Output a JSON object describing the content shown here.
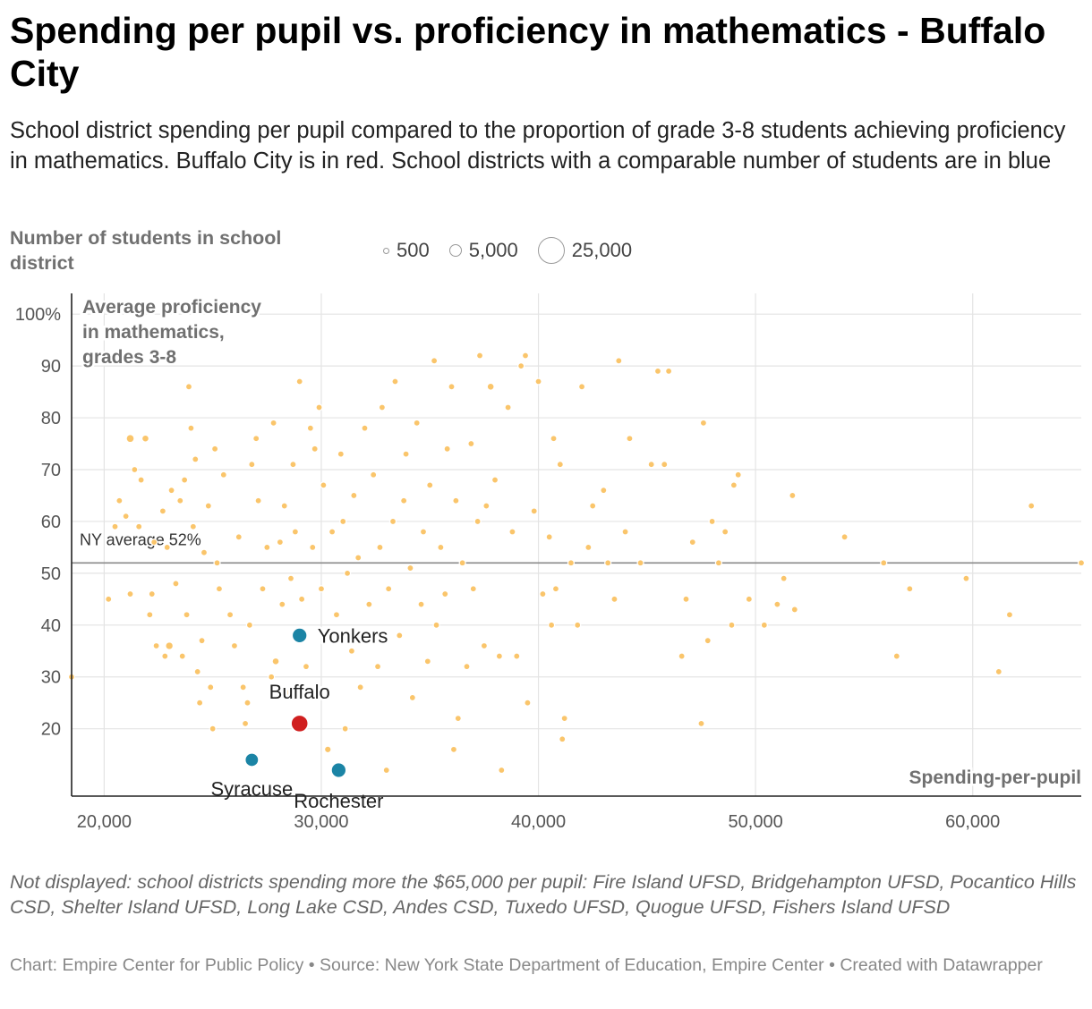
{
  "header": {
    "title": "Spending per pupil vs. proficiency in mathematics - Buffalo City",
    "description": "School district spending per pupil compared to the proportion of grade 3-8 students achieving proficiency in mathematics. Buffalo City is in red. School districts with a comparable number of students are in blue"
  },
  "legend": {
    "title": "Number of students in school district",
    "sizes": [
      {
        "label": "500",
        "students": 500
      },
      {
        "label": "5,000",
        "students": 5000
      },
      {
        "label": "25,000",
        "students": 25000
      }
    ]
  },
  "chart_data": {
    "type": "scatter",
    "title": "Spending per pupil vs. proficiency in mathematics - Buffalo City",
    "xlabel": "Spending-per-pupil",
    "ylabel": "Average proficiency in mathematics, grades 3-8",
    "xlim": [
      18500,
      65000
    ],
    "ylim": [
      7,
      104
    ],
    "x_ticks": [
      {
        "value": 20000,
        "label": "20,000"
      },
      {
        "value": 30000,
        "label": "30,000"
      },
      {
        "value": 40000,
        "label": "40,000"
      },
      {
        "value": 50000,
        "label": "50,000"
      },
      {
        "value": 60000,
        "label": "60,000"
      }
    ],
    "y_ticks": [
      {
        "value": 20,
        "label": "20"
      },
      {
        "value": 30,
        "label": "30"
      },
      {
        "value": 40,
        "label": "40"
      },
      {
        "value": 50,
        "label": "50"
      },
      {
        "value": 60,
        "label": "60"
      },
      {
        "value": 70,
        "label": "70"
      },
      {
        "value": 80,
        "label": "80"
      },
      {
        "value": 90,
        "label": "90"
      },
      {
        "value": 100,
        "label": "100%"
      }
    ],
    "reference_line": {
      "value": 52,
      "label": "NY average 52%"
    },
    "colors": {
      "other": "#fac56b",
      "buffalo": "#d01f1f",
      "comparable": "#1b84a5"
    },
    "highlighted": [
      {
        "name": "Buffalo",
        "x": 29000,
        "y": 21,
        "students": 31000,
        "group": "buffalo"
      },
      {
        "name": "Yonkers",
        "x": 29000,
        "y": 38,
        "students": 24000,
        "group": "comparable"
      },
      {
        "name": "Syracuse",
        "x": 26800,
        "y": 14,
        "students": 20000,
        "group": "comparable"
      },
      {
        "name": "Rochester",
        "x": 30800,
        "y": 12,
        "students": 24000,
        "group": "comparable"
      }
    ],
    "points": [
      [
        18500,
        30,
        1500
      ],
      [
        20200,
        45,
        900
      ],
      [
        20500,
        59,
        2500
      ],
      [
        20700,
        64,
        1200
      ],
      [
        21000,
        61,
        1500
      ],
      [
        21200,
        76,
        6500
      ],
      [
        21200,
        46,
        1000
      ],
      [
        21400,
        70,
        3500
      ],
      [
        21600,
        59,
        2500
      ],
      [
        21700,
        68,
        2500
      ],
      [
        21900,
        76,
        5000
      ],
      [
        22100,
        42,
        1600
      ],
      [
        22200,
        46,
        2000
      ],
      [
        22300,
        56,
        1200
      ],
      [
        22400,
        36,
        1300
      ],
      [
        22700,
        62,
        3000
      ],
      [
        22800,
        34,
        2500
      ],
      [
        22900,
        55,
        1200
      ],
      [
        23000,
        36,
        6000
      ],
      [
        23100,
        66,
        2500
      ],
      [
        23300,
        48,
        2000
      ],
      [
        23500,
        64,
        1800
      ],
      [
        23600,
        34,
        1500
      ],
      [
        23700,
        68,
        2500
      ],
      [
        23800,
        42,
        1100
      ],
      [
        23900,
        86,
        2000
      ],
      [
        24000,
        78,
        2500
      ],
      [
        24100,
        59,
        1800
      ],
      [
        24200,
        72,
        2500
      ],
      [
        24300,
        31,
        1200
      ],
      [
        24400,
        25,
        1300
      ],
      [
        24500,
        37,
        1400
      ],
      [
        24600,
        54,
        1800
      ],
      [
        24800,
        63,
        1300
      ],
      [
        24900,
        28,
        2600
      ],
      [
        25000,
        20,
        1200
      ],
      [
        25100,
        74,
        2500
      ],
      [
        25200,
        52,
        1500
      ],
      [
        25300,
        47,
        2000
      ],
      [
        25500,
        69,
        2500
      ],
      [
        25800,
        42,
        1800
      ],
      [
        26000,
        36,
        2000
      ],
      [
        26200,
        57,
        1800
      ],
      [
        26400,
        28,
        1300
      ],
      [
        26500,
        21,
        2000
      ],
      [
        26600,
        25,
        2500
      ],
      [
        26700,
        40,
        1500
      ],
      [
        26800,
        71,
        2500
      ],
      [
        27000,
        76,
        1200
      ],
      [
        27100,
        64,
        2000
      ],
      [
        27300,
        47,
        1800
      ],
      [
        27500,
        55,
        2500
      ],
      [
        27700,
        30,
        1500
      ],
      [
        27800,
        79,
        2500
      ],
      [
        27900,
        33,
        5000
      ],
      [
        28100,
        56,
        1800
      ],
      [
        28200,
        44,
        2500
      ],
      [
        28300,
        63,
        1500
      ],
      [
        28400,
        27,
        1900
      ],
      [
        28600,
        49,
        2000
      ],
      [
        28700,
        71,
        2000
      ],
      [
        28800,
        58,
        1800
      ],
      [
        29000,
        87,
        2000
      ],
      [
        29100,
        45,
        2500
      ],
      [
        29300,
        32,
        4000
      ],
      [
        29500,
        78,
        1200
      ],
      [
        29600,
        55,
        2500
      ],
      [
        29700,
        74,
        1200
      ],
      [
        29900,
        82,
        2500
      ],
      [
        30000,
        47,
        3500
      ],
      [
        30100,
        67,
        1800
      ],
      [
        30200,
        38,
        2500
      ],
      [
        30300,
        16,
        4500
      ],
      [
        30500,
        58,
        2500
      ],
      [
        30700,
        42,
        2000
      ],
      [
        30900,
        73,
        2500
      ],
      [
        31000,
        60,
        1500
      ],
      [
        31100,
        20,
        2500
      ],
      [
        31200,
        50,
        3000
      ],
      [
        31400,
        35,
        1800
      ],
      [
        31500,
        65,
        2000
      ],
      [
        31700,
        53,
        2500
      ],
      [
        31800,
        28,
        2000
      ],
      [
        32000,
        78,
        2500
      ],
      [
        32200,
        44,
        1800
      ],
      [
        32400,
        69,
        2000
      ],
      [
        32600,
        32,
        4000
      ],
      [
        32700,
        55,
        2500
      ],
      [
        32800,
        82,
        3000
      ],
      [
        33000,
        12,
        1200
      ],
      [
        33100,
        47,
        1800
      ],
      [
        33300,
        60,
        2000
      ],
      [
        33400,
        87,
        3500
      ],
      [
        33600,
        38,
        2500
      ],
      [
        33800,
        64,
        1800
      ],
      [
        33900,
        73,
        2500
      ],
      [
        34100,
        51,
        2000
      ],
      [
        34200,
        26,
        2500
      ],
      [
        34400,
        79,
        1500
      ],
      [
        34600,
        44,
        2000
      ],
      [
        34700,
        58,
        3000
      ],
      [
        34900,
        33,
        2500
      ],
      [
        35000,
        67,
        2000
      ],
      [
        35200,
        91,
        2500
      ],
      [
        35300,
        40,
        1800
      ],
      [
        35500,
        55,
        2500
      ],
      [
        35700,
        46,
        1500
      ],
      [
        35800,
        74,
        2000
      ],
      [
        36000,
        86,
        2000
      ],
      [
        36100,
        16,
        2000
      ],
      [
        36200,
        64,
        2500
      ],
      [
        36300,
        22,
        1500
      ],
      [
        36500,
        52,
        1800
      ],
      [
        36700,
        32,
        2000
      ],
      [
        36900,
        75,
        1500
      ],
      [
        37000,
        47,
        2000
      ],
      [
        37200,
        60,
        3000
      ],
      [
        37300,
        92,
        4000
      ],
      [
        37500,
        36,
        1800
      ],
      [
        37600,
        63,
        2500
      ],
      [
        37800,
        86,
        5000
      ],
      [
        38000,
        68,
        1500
      ],
      [
        38200,
        34,
        2500
      ],
      [
        38300,
        12,
        1500
      ],
      [
        38600,
        82,
        1800
      ],
      [
        38800,
        58,
        1200
      ],
      [
        39000,
        34,
        3000
      ],
      [
        39200,
        90,
        2000
      ],
      [
        39400,
        92,
        1500
      ],
      [
        39500,
        25,
        2000
      ],
      [
        39800,
        62,
        1500
      ],
      [
        40000,
        87,
        1500
      ],
      [
        40200,
        46,
        1500
      ],
      [
        40500,
        57,
        1500
      ],
      [
        40600,
        40,
        2000
      ],
      [
        40700,
        76,
        2500
      ],
      [
        40800,
        47,
        4000
      ],
      [
        41000,
        71,
        2500
      ],
      [
        41100,
        18,
        1200
      ],
      [
        41200,
        22,
        1500
      ],
      [
        41500,
        52,
        1500
      ],
      [
        41800,
        40,
        1200
      ],
      [
        42000,
        86,
        1500
      ],
      [
        42300,
        55,
        1200
      ],
      [
        42500,
        63,
        1000
      ],
      [
        43000,
        66,
        2000
      ],
      [
        43200,
        52,
        1500
      ],
      [
        43500,
        45,
        1500
      ],
      [
        43700,
        91,
        2000
      ],
      [
        44000,
        58,
        2500
      ],
      [
        44200,
        76,
        1500
      ],
      [
        44700,
        52,
        2000
      ],
      [
        45200,
        71,
        2000
      ],
      [
        45500,
        89,
        2500
      ],
      [
        45800,
        71,
        3000
      ],
      [
        46000,
        89,
        1800
      ],
      [
        46600,
        34,
        2000
      ],
      [
        46800,
        45,
        1500
      ],
      [
        47100,
        56,
        1200
      ],
      [
        47500,
        21,
        1200
      ],
      [
        47600,
        79,
        2000
      ],
      [
        47800,
        37,
        1200
      ],
      [
        48000,
        60,
        1800
      ],
      [
        48300,
        52,
        1200
      ],
      [
        48600,
        58,
        1500
      ],
      [
        48900,
        40,
        1500
      ],
      [
        49000,
        67,
        1800
      ],
      [
        49200,
        69,
        1500
      ],
      [
        49700,
        45,
        1200
      ],
      [
        50400,
        40,
        1500
      ],
      [
        51000,
        44,
        1000
      ],
      [
        51300,
        49,
        1000
      ],
      [
        51700,
        65,
        1500
      ],
      [
        51800,
        43,
        1200
      ],
      [
        54100,
        57,
        1200
      ],
      [
        55900,
        52,
        1200
      ],
      [
        56500,
        34,
        1200
      ],
      [
        57100,
        47,
        1200
      ],
      [
        59700,
        49,
        1200
      ],
      [
        61200,
        31,
        2000
      ],
      [
        61700,
        42,
        1200
      ],
      [
        62700,
        63,
        1200
      ],
      [
        65000,
        52,
        1500
      ]
    ]
  },
  "footer": {
    "note": "Not displayed: school districts spending more the $65,000 per pupil: Fire Island UFSD, Bridgehampton UFSD, Pocantico Hills CSD, Shelter Island UFSD, Long Lake CSD, Andes CSD, Tuxedo UFSD, Quogue UFSD, Fishers Island UFSD",
    "credit": "Chart: Empire Center for Public Policy • Source: New York State Department of Education, Empire Center • Created with Datawrapper"
  }
}
